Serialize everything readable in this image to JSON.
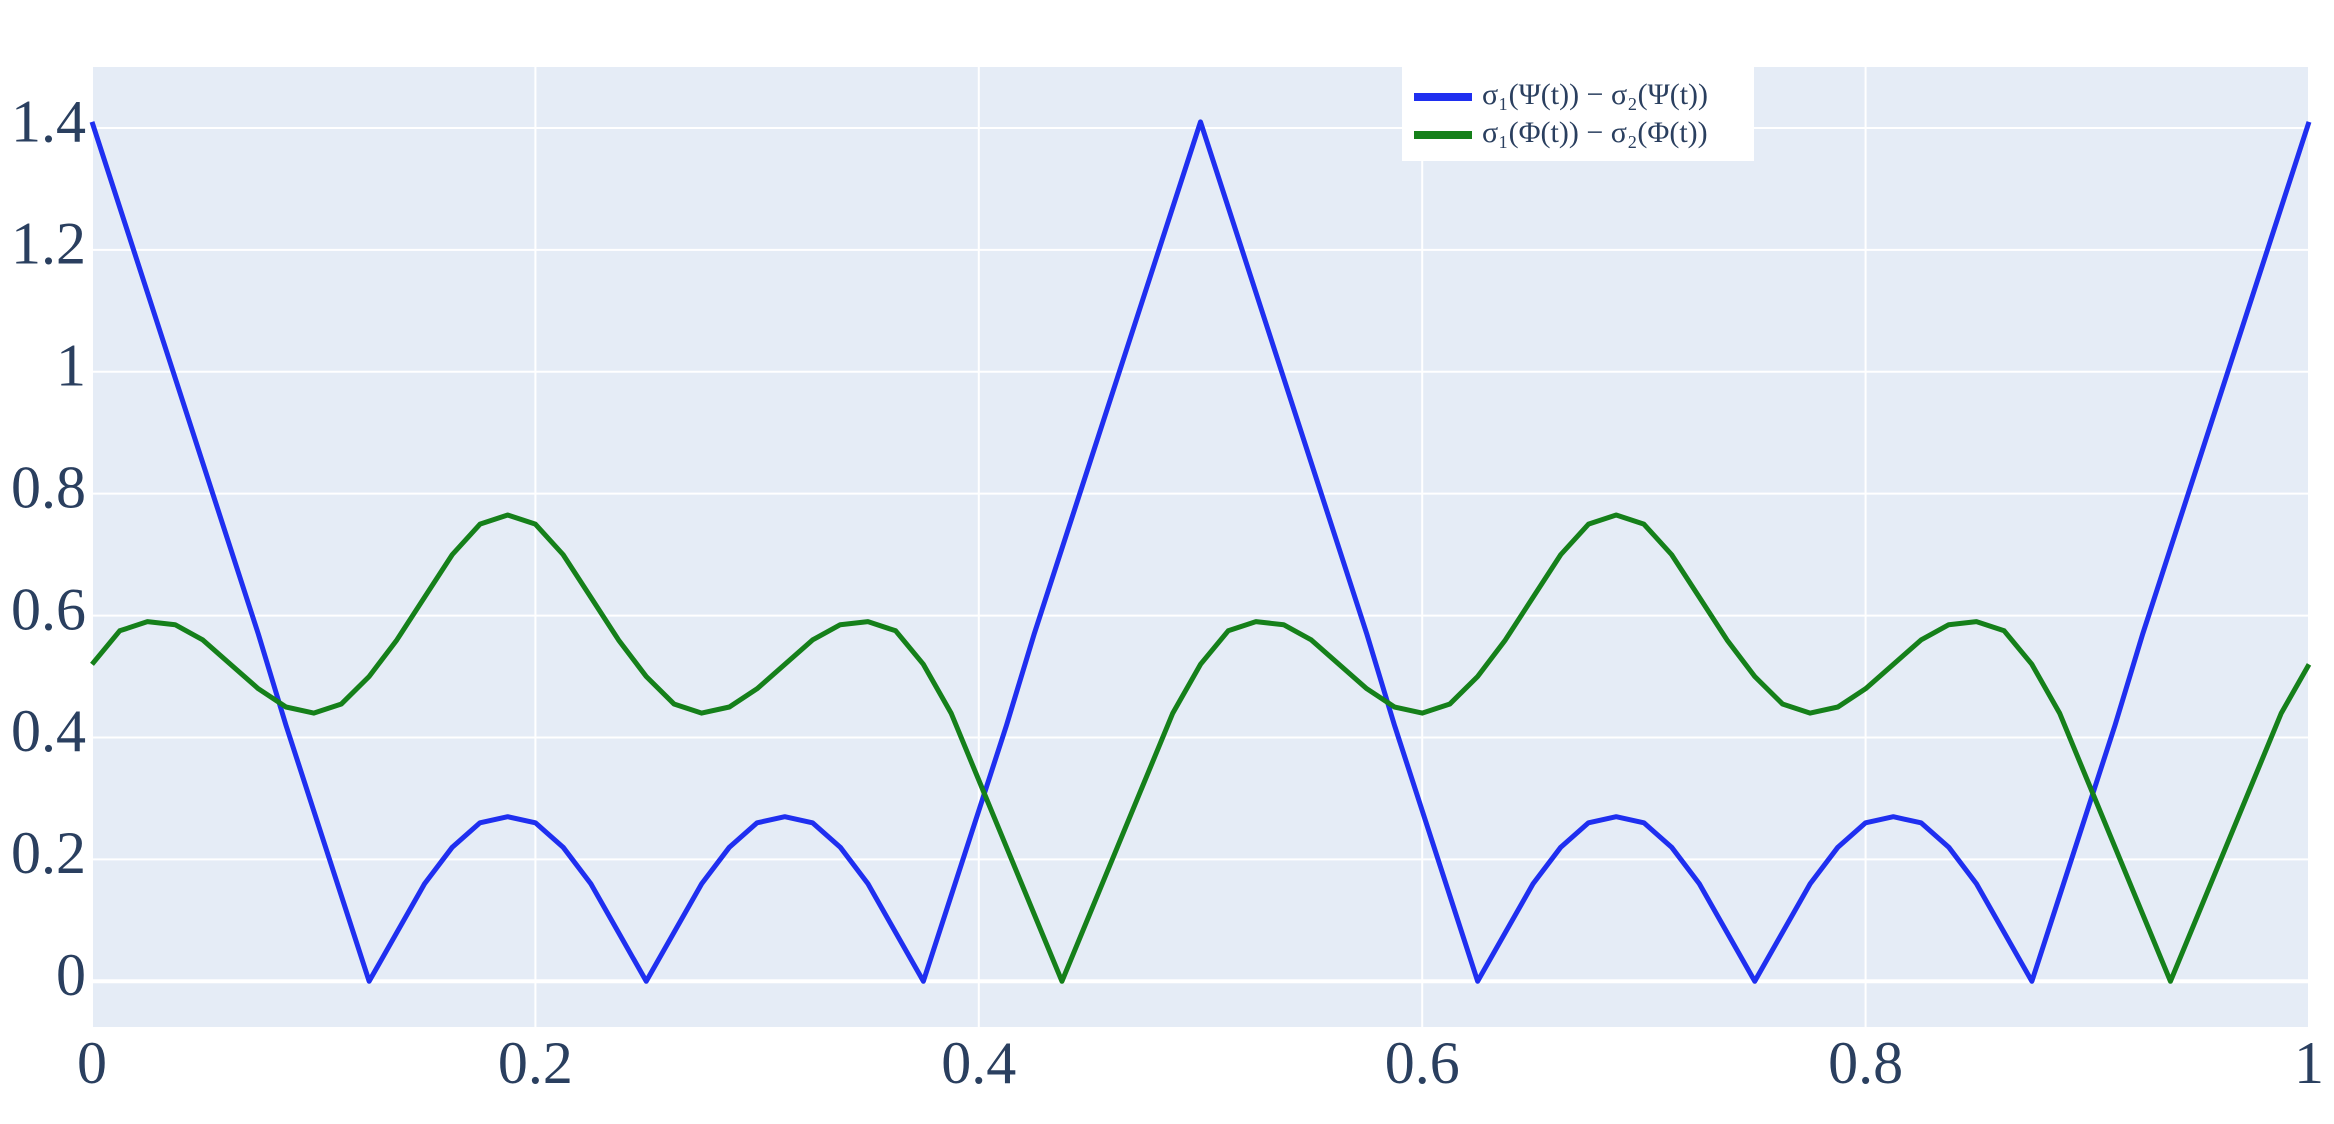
{
  "chart_data": {
    "type": "line",
    "x": [
      0,
      0.0125,
      0.025,
      0.0375,
      0.05,
      0.0625,
      0.075,
      0.0875,
      0.1,
      0.1125,
      0.125,
      0.1375,
      0.15,
      0.1625,
      0.175,
      0.1875,
      0.2,
      0.2125,
      0.225,
      0.2375,
      0.25,
      0.2625,
      0.275,
      0.2875,
      0.3,
      0.3125,
      0.325,
      0.3375,
      0.35,
      0.3625,
      0.375,
      0.3875,
      0.4,
      0.4125,
      0.425,
      0.4375,
      0.45,
      0.4625,
      0.475,
      0.4875,
      0.5,
      0.5125,
      0.525,
      0.5375,
      0.55,
      0.5625,
      0.575,
      0.5875,
      0.6,
      0.6125,
      0.625,
      0.6375,
      0.65,
      0.6625,
      0.675,
      0.6875,
      0.7,
      0.7125,
      0.725,
      0.7375,
      0.75,
      0.7625,
      0.775,
      0.7875,
      0.8,
      0.8125,
      0.825,
      0.8375,
      0.85,
      0.8625,
      0.875,
      0.8875,
      0.9,
      0.9125,
      0.925,
      0.9375,
      0.95,
      0.9625,
      0.975,
      0.9875,
      1
    ],
    "series": [
      {
        "name": "σ₁(Ψ(t)) − σ₂(Ψ(t))",
        "color": "#1f2ff0",
        "values": [
          1.41,
          1.27,
          1.13,
          0.99,
          0.85,
          0.71,
          0.57,
          0.42,
          0.28,
          0.14,
          0,
          0.08,
          0.16,
          0.22,
          0.26,
          0.27,
          0.26,
          0.22,
          0.16,
          0.08,
          0,
          0.08,
          0.16,
          0.22,
          0.26,
          0.27,
          0.26,
          0.22,
          0.16,
          0.08,
          0,
          0.14,
          0.28,
          0.42,
          0.57,
          0.71,
          0.85,
          0.99,
          1.13,
          1.27,
          1.41,
          1.27,
          1.13,
          0.99,
          0.85,
          0.71,
          0.57,
          0.42,
          0.28,
          0.14,
          0,
          0.08,
          0.16,
          0.22,
          0.26,
          0.27,
          0.26,
          0.22,
          0.16,
          0.08,
          0,
          0.08,
          0.16,
          0.22,
          0.26,
          0.27,
          0.26,
          0.22,
          0.16,
          0.08,
          0,
          0.14,
          0.28,
          0.42,
          0.57,
          0.71,
          0.85,
          0.99,
          1.13,
          1.27,
          1.41
        ]
      },
      {
        "name": "σ₁(Φ(t)) − σ₂(Φ(t))",
        "color": "#15801a",
        "values": [
          0.52,
          0.575,
          0.59,
          0.585,
          0.56,
          0.52,
          0.48,
          0.45,
          0.44,
          0.455,
          0.5,
          0.56,
          0.63,
          0.7,
          0.75,
          0.765,
          0.75,
          0.7,
          0.63,
          0.56,
          0.5,
          0.455,
          0.44,
          0.45,
          0.48,
          0.52,
          0.56,
          0.585,
          0.59,
          0.575,
          0.52,
          0.44,
          0.33,
          0.22,
          0.11,
          0,
          0.11,
          0.22,
          0.33,
          0.44,
          0.52,
          0.575,
          0.59,
          0.585,
          0.56,
          0.52,
          0.48,
          0.45,
          0.44,
          0.455,
          0.5,
          0.56,
          0.63,
          0.7,
          0.75,
          0.765,
          0.75,
          0.7,
          0.63,
          0.56,
          0.5,
          0.455,
          0.44,
          0.45,
          0.48,
          0.52,
          0.56,
          0.585,
          0.59,
          0.575,
          0.52,
          0.44,
          0.33,
          0.22,
          0.11,
          0,
          0.11,
          0.22,
          0.33,
          0.44,
          0.52
        ]
      }
    ],
    "xlim": [
      0,
      1
    ],
    "xticks": [
      0,
      0.2,
      0.4,
      0.6,
      0.8,
      1
    ],
    "ylim": [
      -0.075,
      1.5
    ],
    "yticks": [
      0,
      0.2,
      0.4,
      0.6,
      0.8,
      1,
      1.2,
      1.4
    ],
    "grid": true,
    "legend": "top-right"
  }
}
